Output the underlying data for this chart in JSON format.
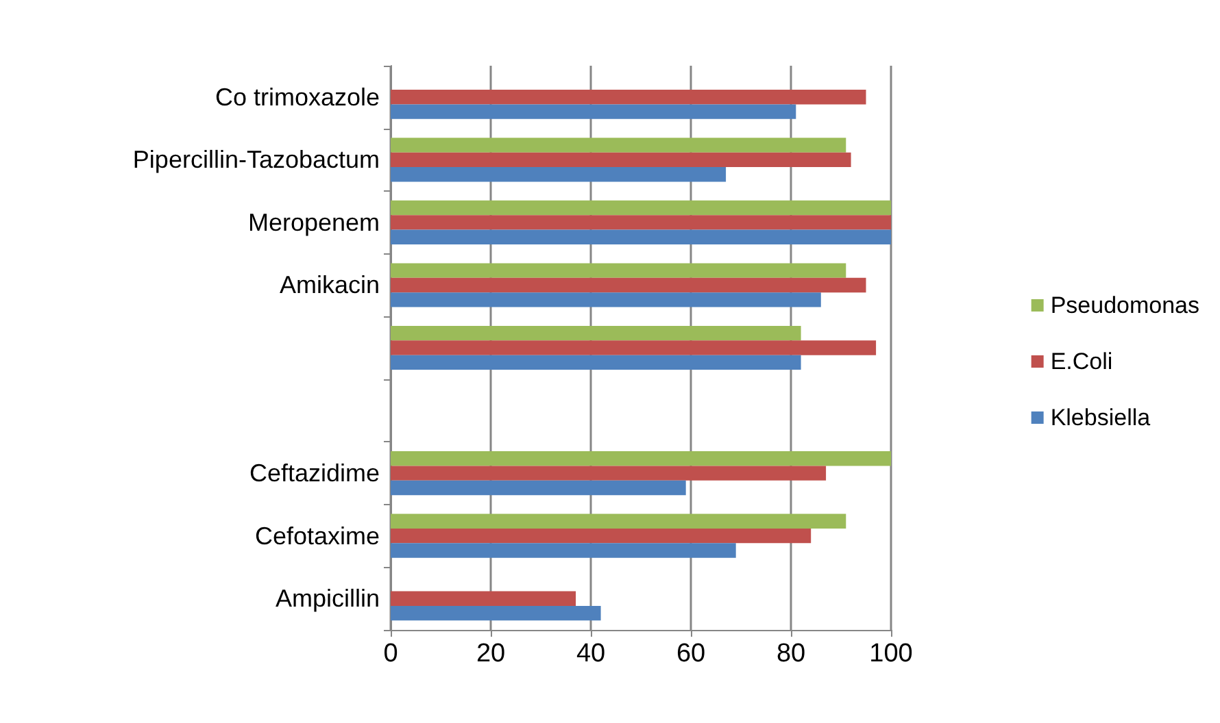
{
  "chart_data": {
    "type": "bar",
    "orientation": "horizontal",
    "categories": [
      "Co trimoxazole",
      "Pipercillin-Tazobactum",
      "Meropenem",
      "Amikacin",
      null,
      null,
      "Ceftazidime",
      "Cefotaxime",
      "Ampicillin"
    ],
    "series": [
      {
        "name": "Pseudomonas",
        "color": "#9bbb59",
        "values": [
          0,
          91,
          100,
          91,
          82,
          null,
          100,
          91,
          0
        ]
      },
      {
        "name": "E.Coli",
        "color": "#c0504d",
        "values": [
          95,
          92,
          100,
          95,
          97,
          null,
          87,
          84,
          37
        ]
      },
      {
        "name": "Klebsiella",
        "color": "#4f81bd",
        "values": [
          81,
          67,
          100,
          86,
          82,
          null,
          59,
          69,
          42
        ]
      }
    ],
    "xlim": [
      0,
      100
    ],
    "xticks": [
      0,
      20,
      40,
      60,
      80,
      100
    ],
    "grid": "x",
    "legend": "right"
  }
}
